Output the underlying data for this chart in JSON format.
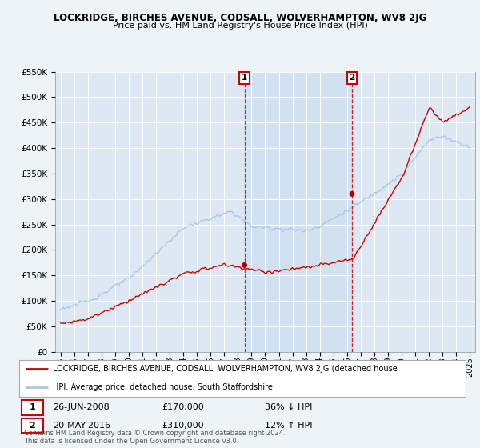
{
  "title": "LOCKRIDGE, BIRCHES AVENUE, CODSALL, WOLVERHAMPTON, WV8 2JG",
  "subtitle": "Price paid vs. HM Land Registry's House Price Index (HPI)",
  "hpi_color": "#a8c8e8",
  "price_color": "#cc0000",
  "background_color": "#eef3f8",
  "plot_bg_color": "#dde8f3",
  "shade_color": "#ccdff0",
  "ylim": [
    0,
    550000
  ],
  "yticks": [
    0,
    50000,
    100000,
    150000,
    200000,
    250000,
    300000,
    350000,
    400000,
    450000,
    500000,
    550000
  ],
  "marker1_date": "26-JUN-2008",
  "marker1_year": 2008.48,
  "marker1_price": 170000,
  "marker1_pct": "36% ↓ HPI",
  "marker2_date": "20-MAY-2016",
  "marker2_year": 2016.37,
  "marker2_price": 310000,
  "marker2_pct": "12% ↑ HPI",
  "legend_line1": "LOCKRIDGE, BIRCHES AVENUE, CODSALL, WOLVERHAMPTON, WV8 2JG (detached house",
  "legend_line2": "HPI: Average price, detached house, South Staffordshire",
  "footnote": "Contains HM Land Registry data © Crown copyright and database right 2024.\nThis data is licensed under the Open Government Licence v3.0.",
  "xtick_years": [
    1995,
    1996,
    1997,
    1998,
    1999,
    2000,
    2001,
    2002,
    2003,
    2004,
    2005,
    2006,
    2007,
    2008,
    2009,
    2010,
    2011,
    2012,
    2013,
    2014,
    2015,
    2016,
    2017,
    2018,
    2019,
    2020,
    2021,
    2022,
    2023,
    2024,
    2025
  ]
}
